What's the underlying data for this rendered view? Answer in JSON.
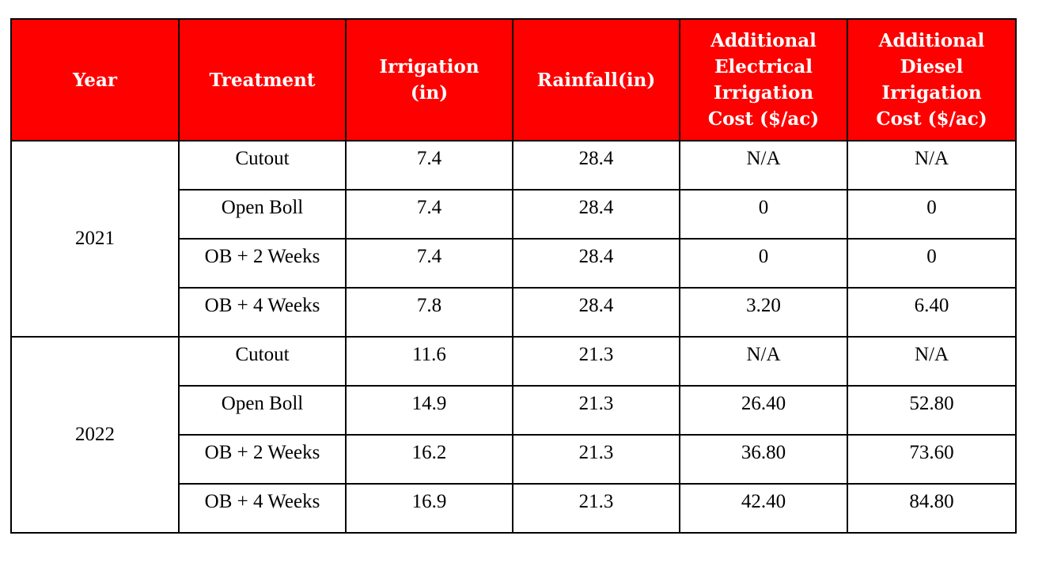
{
  "table": {
    "headers": [
      "Year",
      "Treatment",
      "Irrigation (in)",
      "Rainfall(in)",
      "Additional Electrical Irrigation Cost ($/ac)",
      "Additional Diesel Irrigation Cost ($/ac)"
    ],
    "header_lines": [
      [
        "Year"
      ],
      [
        "Treatment"
      ],
      [
        "Irrigation",
        "(in)"
      ],
      [
        "Rainfall(in)"
      ],
      [
        "Additional",
        "Electrical",
        "Irrigation",
        "Cost ($/ac)"
      ],
      [
        "Additional",
        "Diesel",
        "Irrigation",
        "Cost ($/ac)"
      ]
    ],
    "groups": [
      {
        "year": "2021",
        "rows": [
          [
            "Cutout",
            "7.4",
            "28.4",
            "N/A",
            "N/A"
          ],
          [
            "Open Boll",
            "7.4",
            "28.4",
            "0",
            "0"
          ],
          [
            "OB + 2 Weeks",
            "7.4",
            "28.4",
            "0",
            "0"
          ],
          [
            "OB + 4 Weeks",
            "7.8",
            "28.4",
            "3.20",
            "6.40"
          ]
        ]
      },
      {
        "year": "2022",
        "rows": [
          [
            "Cutout",
            "11.6",
            "21.3",
            "N/A",
            "N/A"
          ],
          [
            "Open Boll",
            "14.9",
            "21.3",
            "26.40",
            "52.80"
          ],
          [
            "OB + 2 Weeks",
            "16.2",
            "21.3",
            "36.80",
            "73.60"
          ],
          [
            "OB + 4 Weeks",
            "16.9",
            "21.3",
            "42.40",
            "84.80"
          ]
        ]
      }
    ],
    "colors": {
      "header_bg": "#ff0000",
      "header_text": "#ffffff",
      "border": "#000000"
    }
  }
}
